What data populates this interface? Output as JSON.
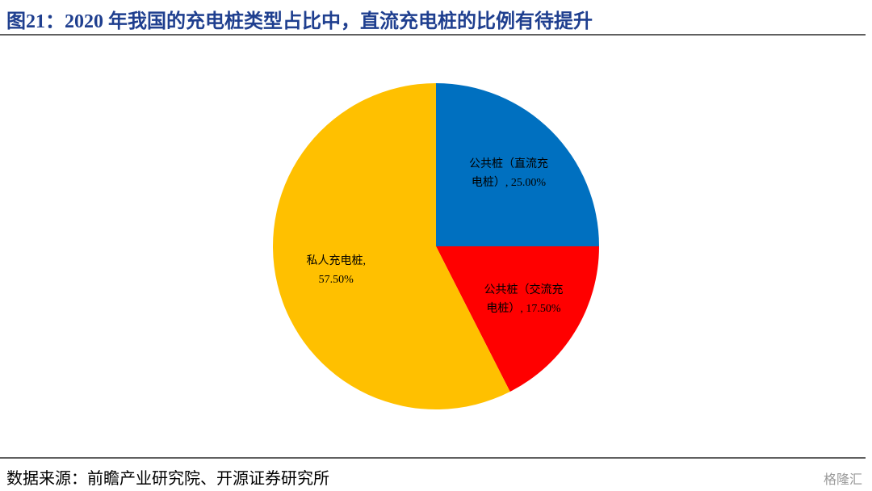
{
  "chart_data": {
    "type": "pie",
    "title": "图21：2020 年我国的充电桩类型占比中，直流充电桩的比例有待提升",
    "values": [
      25,
      17.5,
      57.5
    ],
    "value_labels": [
      "公共桩（直流充电桩）, 25.00%",
      "公共桩（交流充电桩）, 17.50%",
      "私人充电桩, 57.50%"
    ],
    "colors": [
      "#0070c0",
      "#ff0000",
      "#ffc000"
    ],
    "source": "数据来源：前瞻产业研究院、开源证券研究所",
    "watermark": "格隆汇"
  }
}
